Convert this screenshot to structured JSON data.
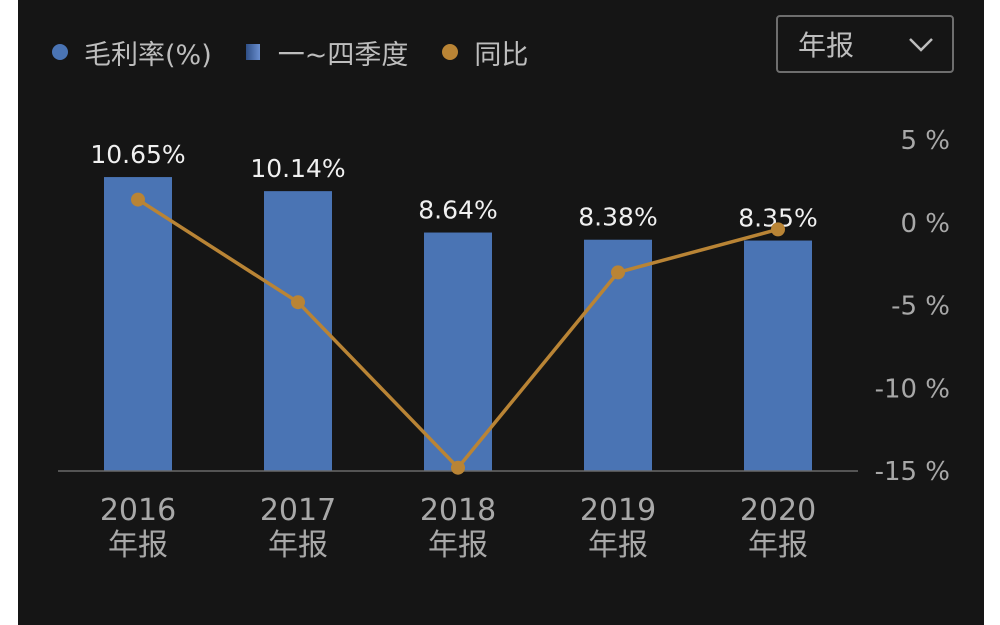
{
  "legend": {
    "margin": "毛利率(%)",
    "quarters": "一~四季度",
    "yoy": "同比"
  },
  "period_select": {
    "value": "年报"
  },
  "colors": {
    "bar": "#4a74b4",
    "line": "#b98435",
    "background": "#151515"
  },
  "chart_data": {
    "type": "bar+line",
    "categories": [
      "2016",
      "2017",
      "2018",
      "2019",
      "2020"
    ],
    "category_sublabel": "年报",
    "series": [
      {
        "name": "毛利率(%)",
        "type": "bar",
        "values": [
          10.65,
          10.14,
          8.64,
          8.38,
          8.35
        ],
        "value_labels": [
          "10.65%",
          "10.14%",
          "8.64%",
          "8.38%",
          "8.35%"
        ]
      },
      {
        "name": "同比",
        "type": "line",
        "axis": "right",
        "values": [
          1.4,
          -4.8,
          -14.8,
          -3.0,
          -0.4
        ]
      }
    ],
    "right_axis": {
      "ticks": [
        "5 %",
        "0 %",
        "-5 %",
        "-10 %",
        "-15 %"
      ],
      "range": [
        -15,
        5
      ]
    }
  }
}
